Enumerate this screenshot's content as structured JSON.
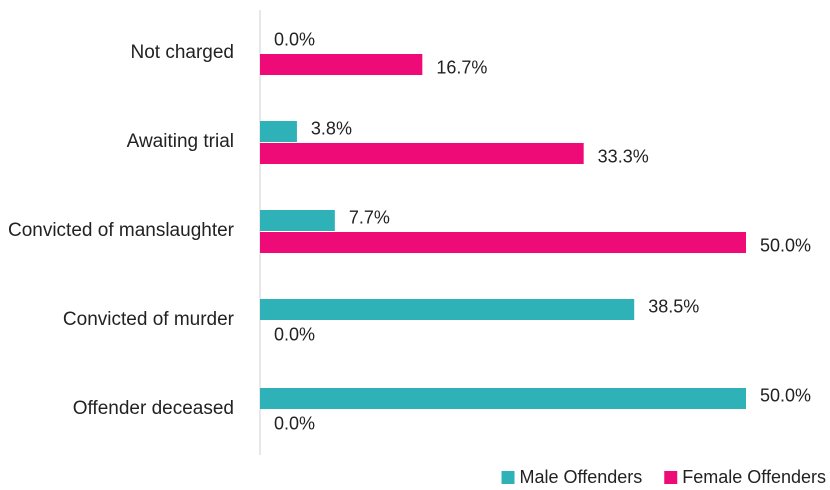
{
  "chart_data": {
    "type": "bar",
    "orientation": "horizontal",
    "categories": [
      "Not charged",
      "Awaiting trial",
      "Convicted of manslaughter",
      "Convicted of murder",
      "Offender deceased"
    ],
    "series": [
      {
        "name": "Male Offenders",
        "color": "#2fb1b8",
        "values": [
          0,
          3.8,
          7.7,
          38.5,
          50
        ],
        "value_labels": [
          "0.0%",
          "3.8%",
          "7.7%",
          "38.5%",
          "50.0%"
        ]
      },
      {
        "name": "Female Offenders",
        "color": "#ee0b78",
        "values": [
          16.7,
          33.3,
          50,
          0,
          0
        ],
        "value_labels": [
          "16.7%",
          "33.3%",
          "50.0%",
          "0.0%",
          "0.0%"
        ]
      }
    ],
    "xlim": [
      0,
      50
    ],
    "legend": "bottom-right"
  }
}
